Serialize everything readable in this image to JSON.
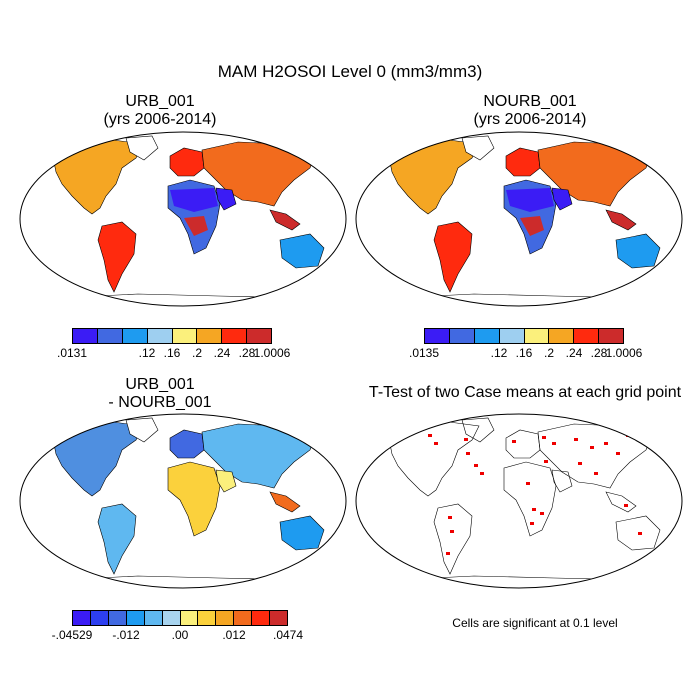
{
  "figure": {
    "title": "MAM H2OSOI Level 0 (mm3/mm3)"
  },
  "panels": {
    "urb": {
      "title_line1": "URB_001",
      "title_line2": "(yrs 2006-2014)",
      "colorbar": {
        "colors": [
          "#3b1cf5",
          "#4169e1",
          "#1e9bf0",
          "#9ecff0",
          "#fbf07c",
          "#f5a623",
          "#ff2a0e",
          "#cc2b2b"
        ],
        "tick_labels": [
          ".0131",
          ".12",
          ".16",
          ".2",
          ".24",
          ".28",
          "1.0006"
        ]
      }
    },
    "nourb": {
      "title_line1": "NOURB_001",
      "title_line2": "(yrs 2006-2014)",
      "colorbar": {
        "colors": [
          "#3b1cf5",
          "#4169e1",
          "#1e9bf0",
          "#9ecff0",
          "#fbf07c",
          "#f5a623",
          "#ff2a0e",
          "#cc2b2b"
        ],
        "tick_labels": [
          ".0135",
          ".12",
          ".16",
          ".2",
          ".24",
          ".28",
          "1.0006"
        ]
      }
    },
    "diff": {
      "title_line1": "URB_001",
      "title_line2": "- NOURB_001",
      "colorbar": {
        "colors": [
          "#3b1cf5",
          "#2d3ff0",
          "#4169e1",
          "#1e9bf0",
          "#5fb8f0",
          "#a8d4ef",
          "#fbf07c",
          "#fbd13c",
          "#f5a623",
          "#f26b1d",
          "#ff2a0e",
          "#cc2b2b"
        ],
        "tick_labels": [
          "-.04529",
          "-.012",
          ".00",
          ".012",
          ".0474"
        ]
      }
    },
    "ttest": {
      "title": "T-Test of two Case means at each grid point",
      "footnote": "Cells are significant at 0.1 level",
      "marker_color": "#ee0000"
    }
  }
}
